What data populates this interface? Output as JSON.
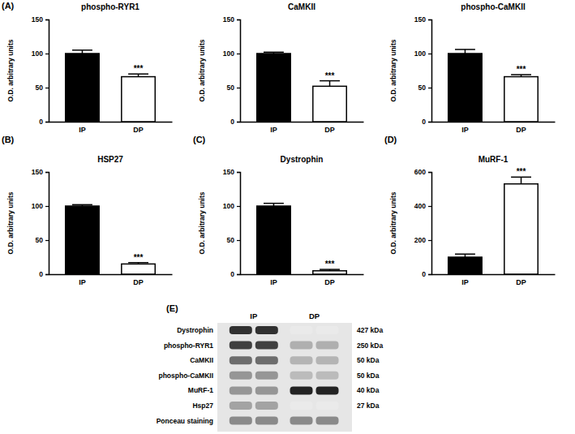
{
  "chart_data": [
    {
      "type": "bar",
      "title": "phospho-RYR1",
      "annotations": [
        "(A)"
      ],
      "categories": [
        "IP",
        "DP"
      ],
      "values": [
        100,
        66
      ],
      "errors": [
        5,
        4
      ],
      "significance": [
        null,
        "***"
      ],
      "colors": [
        "#000000",
        "#ffffff"
      ],
      "ylabel": "O.D. arbitrary units",
      "ylim": [
        0,
        150
      ],
      "yticks": [
        0,
        50,
        100,
        150
      ]
    },
    {
      "type": "bar",
      "title": "CaMKII",
      "categories": [
        "IP",
        "DP"
      ],
      "values": [
        100,
        52
      ],
      "errors": [
        2,
        8
      ],
      "significance": [
        null,
        "***"
      ],
      "colors": [
        "#000000",
        "#ffffff"
      ],
      "ylabel": "O.D. arbitrary units",
      "ylim": [
        0,
        150
      ],
      "yticks": [
        0,
        50,
        100,
        150
      ]
    },
    {
      "type": "bar",
      "title": "phospho-CaMKII",
      "categories": [
        "IP",
        "DP"
      ],
      "values": [
        100,
        66
      ],
      "errors": [
        6,
        3
      ],
      "significance": [
        null,
        "***"
      ],
      "colors": [
        "#000000",
        "#ffffff"
      ],
      "ylabel": "O.D. arbitrary units",
      "ylim": [
        0,
        150
      ],
      "yticks": [
        0,
        50,
        100,
        150
      ]
    },
    {
      "type": "bar",
      "title": "HSP27",
      "annotations": [
        "(B)"
      ],
      "categories": [
        "IP",
        "DP"
      ],
      "values": [
        100,
        15
      ],
      "errors": [
        2,
        2
      ],
      "significance": [
        null,
        "***"
      ],
      "colors": [
        "#000000",
        "#ffffff"
      ],
      "ylabel": "O.D. arbitrary units",
      "ylim": [
        0,
        150
      ],
      "yticks": [
        0,
        50,
        100,
        150
      ]
    },
    {
      "type": "bar",
      "title": "Dystrophin",
      "annotations": [
        "(C)"
      ],
      "categories": [
        "IP",
        "DP"
      ],
      "values": [
        100,
        5
      ],
      "errors": [
        4,
        2
      ],
      "significance": [
        null,
        "***"
      ],
      "colors": [
        "#000000",
        "#ffffff"
      ],
      "ylabel": "O.D. arbitrary units",
      "ylim": [
        0,
        150
      ],
      "yticks": [
        0,
        50,
        100,
        150
      ]
    },
    {
      "type": "bar",
      "title": "MuRF-1",
      "annotations": [
        "(D)"
      ],
      "categories": [
        "IP",
        "DP"
      ],
      "values": [
        100,
        530
      ],
      "errors": [
        18,
        40
      ],
      "significance": [
        null,
        "***"
      ],
      "colors": [
        "#000000",
        "#ffffff"
      ],
      "ylabel": "O.D. arbitrary units",
      "ylim": [
        0,
        600
      ],
      "yticks": [
        0,
        200,
        400,
        600
      ]
    }
  ],
  "blot": {
    "label": "(E)",
    "lanes": [
      "IP",
      "DP"
    ],
    "rows": [
      {
        "name": "Dystrophin",
        "size": "427 kDa"
      },
      {
        "name": "phospho-RYR1",
        "size": "250 kDa"
      },
      {
        "name": "CaMKII",
        "size": "50 kDa"
      },
      {
        "name": "phospho-CaMKII",
        "size": "50 kDa"
      },
      {
        "name": "MuRF-1",
        "size": "40 kDa"
      },
      {
        "name": "Hsp27",
        "size": "27 kDa"
      },
      {
        "name": "Ponceau staining"
      }
    ]
  }
}
